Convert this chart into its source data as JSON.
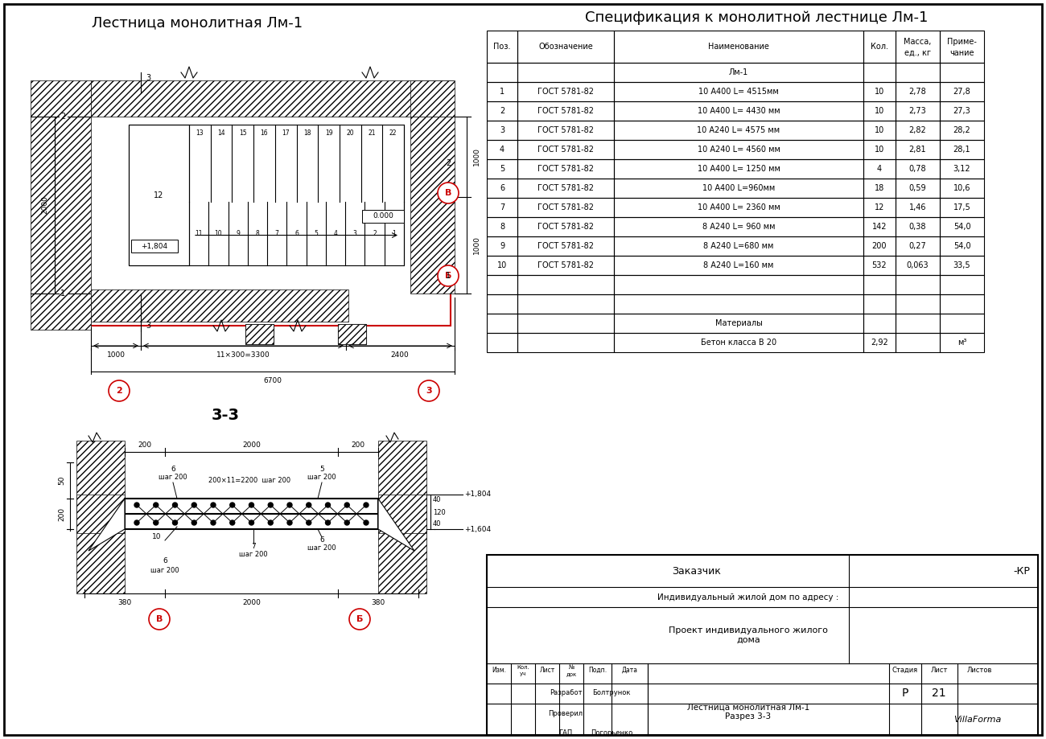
{
  "title_left": "Лестница монолитная Лм-1",
  "title_right": "Спецификация к монолитной лестнице Лм-1",
  "section_title": "3-3",
  "spec_headers": [
    "Поз.",
    "Обозначение",
    "Наименование",
    "Кол.",
    "Масса,\nед., кг",
    "Приме-\nчание"
  ],
  "spec_group": "Лм-1",
  "spec_rows": [
    [
      "1",
      "ГОСТ 5781-82",
      "10 А400 L= 4515мм",
      "10",
      "2,78",
      "27,8"
    ],
    [
      "2",
      "ГОСТ 5781-82",
      "10 А400 L= 4430 мм",
      "10",
      "2,73",
      "27,3"
    ],
    [
      "3",
      "ГОСТ 5781-82",
      "10 А240 L= 4575 мм",
      "10",
      "2,82",
      "28,2"
    ],
    [
      "4",
      "ГОСТ 5781-82",
      "10 А240 L= 4560 мм",
      "10",
      "2,81",
      "28,1"
    ],
    [
      "5",
      "ГОСТ 5781-82",
      "10 А400 L= 1250 мм",
      "4",
      "0,78",
      "3,12"
    ],
    [
      "6",
      "ГОСТ 5781-82",
      "10 А400 L=960мм",
      "18",
      "0,59",
      "10,6"
    ],
    [
      "7",
      "ГОСТ 5781-82",
      "10 А400 L= 2360 мм",
      "12",
      "1,46",
      "17,5"
    ],
    [
      "8",
      "ГОСТ 5781-82",
      "8 А240 L= 960 мм",
      "142",
      "0,38",
      "54,0"
    ],
    [
      "9",
      "ГОСТ 5781-82",
      "8 А240 L=680 мм",
      "200",
      "0,27",
      "54,0"
    ],
    [
      "10",
      "ГОСТ 5781-82",
      "8 А240 L=160 мм",
      "532",
      "0,063",
      "33,5"
    ]
  ],
  "spec_material_label": "Материалы",
  "spec_material_row": [
    "",
    "",
    "Бетон класса В 20",
    "2,92",
    "",
    "м³"
  ],
  "tb_labels": {
    "zakazchik": "Заказчик",
    "zakazchik_val": "-КР",
    "project_desc": "Индивидуальный жилой дом по адресу :",
    "project_title": "Проект индивидуального жилого\nдома",
    "sheet_stage": "Стадия",
    "sheet_num": "Лист",
    "sheet_total": "Листов",
    "stage_val": "Р",
    "list_val": "21",
    "drawing_name": "Лестница монолитная Лм-1\nРазрез 3-3",
    "org_name": "VillaForma",
    "razrabot": "Разработ",
    "razrabot_val": "Болтрунок",
    "proveril": "Проверил",
    "gip": "ГАП",
    "gip_val": "Погорьенко"
  },
  "bg_color": "#ffffff",
  "line_color": "#000000",
  "red_color": "#cc0000"
}
